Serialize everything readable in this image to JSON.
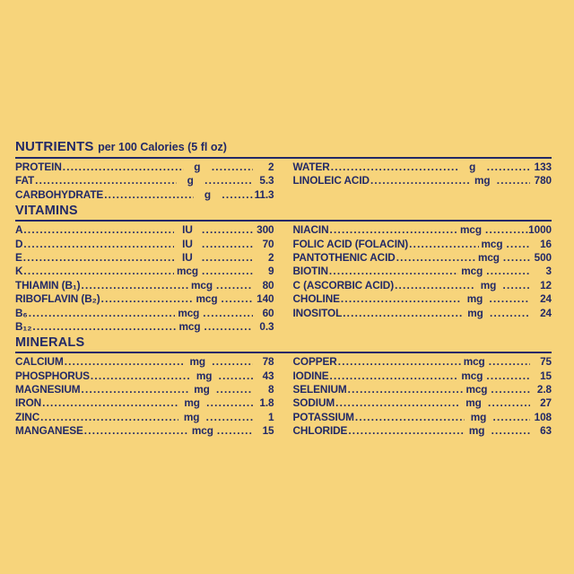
{
  "page": {
    "background_color": "#F7D47B",
    "text_color": "#222967"
  },
  "table": {
    "title": {
      "main": "NUTRIENTS",
      "suffix": "per 100 Calories (5 fl oz)"
    },
    "sections": [
      {
        "name": "",
        "left": [
          {
            "label": "PROTEIN",
            "unit": "g",
            "value": "2"
          },
          {
            "label": "FAT",
            "unit": "g",
            "value": "5.3"
          },
          {
            "label": "CARBOHYDRATE",
            "unit": "g",
            "value": "11.3"
          }
        ],
        "right": [
          {
            "label": "WATER",
            "unit": "g",
            "value": "133"
          },
          {
            "label": "LINOLEIC ACID",
            "unit": "mg",
            "value": "780"
          }
        ]
      },
      {
        "name": "VITAMINS",
        "left": [
          {
            "label": "A",
            "unit": "IU",
            "value": "300"
          },
          {
            "label": "D",
            "unit": "IU",
            "value": "70"
          },
          {
            "label": "E",
            "unit": "IU",
            "value": "2"
          },
          {
            "label": "K",
            "unit": "mcg",
            "value": "9"
          },
          {
            "label": "THIAMIN (B₁)",
            "unit": "mcg",
            "value": "80"
          },
          {
            "label": "RIBOFLAVIN (B₂)",
            "unit": "mcg",
            "value": "140"
          },
          {
            "label": "B₆",
            "unit": "mcg",
            "value": "60"
          },
          {
            "label": "B₁₂",
            "unit": "mcg",
            "value": "0.3"
          }
        ],
        "right": [
          {
            "label": "NIACIN",
            "unit": "mcg",
            "value": "1000"
          },
          {
            "label": "FOLIC ACID (FOLACIN)",
            "unit": "mcg",
            "value": "16"
          },
          {
            "label": "PANTOTHENIC ACID",
            "unit": "mcg",
            "value": "500"
          },
          {
            "label": "BIOTIN",
            "unit": "mcg",
            "value": "3"
          },
          {
            "label": "C (ASCORBIC ACID)",
            "unit": "mg",
            "value": "12"
          },
          {
            "label": "CHOLINE",
            "unit": "mg",
            "value": "24"
          },
          {
            "label": "INOSITOL",
            "unit": "mg",
            "value": "24"
          }
        ]
      },
      {
        "name": "MINERALS",
        "left": [
          {
            "label": "CALCIUM",
            "unit": "mg",
            "value": "78"
          },
          {
            "label": "PHOSPHORUS",
            "unit": "mg",
            "value": "43"
          },
          {
            "label": "MAGNESIUM",
            "unit": "mg",
            "value": "8"
          },
          {
            "label": "IRON",
            "unit": "mg",
            "value": "1.8"
          },
          {
            "label": "ZINC",
            "unit": "mg",
            "value": "1"
          },
          {
            "label": "MANGANESE",
            "unit": "mcg",
            "value": "15"
          }
        ],
        "right": [
          {
            "label": "COPPER",
            "unit": "mcg",
            "value": "75"
          },
          {
            "label": "IODINE",
            "unit": "mcg",
            "value": "15"
          },
          {
            "label": "SELENIUM",
            "unit": "mcg",
            "value": "2.8"
          },
          {
            "label": "SODIUM",
            "unit": "mg",
            "value": "27"
          },
          {
            "label": "POTASSIUM",
            "unit": "mg",
            "value": "108"
          },
          {
            "label": "CHLORIDE",
            "unit": "mg",
            "value": "63"
          }
        ]
      }
    ]
  }
}
